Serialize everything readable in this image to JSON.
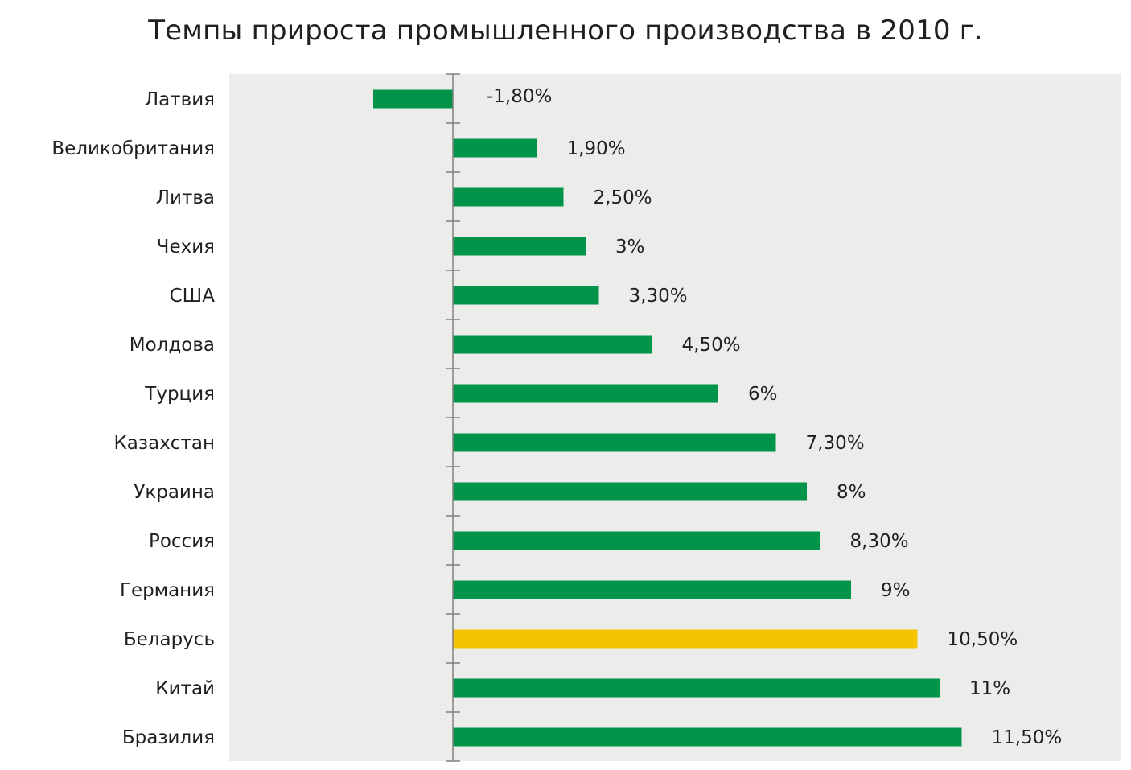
{
  "chart_data": {
    "type": "bar",
    "orientation": "horizontal",
    "title": "Темпы прироста промышленного производства в 2010 г.",
    "categories": [
      "Латвия",
      "Великобритания",
      "Литва",
      "Чехия",
      "США",
      "Молдова",
      "Турция",
      "Казахстан",
      "Украина",
      "Россия",
      "Германия",
      "Беларусь",
      "Китай",
      "Бразилия"
    ],
    "values": [
      -1.8,
      1.9,
      2.5,
      3,
      3.3,
      4.5,
      6,
      7.3,
      8,
      8.3,
      9,
      10.5,
      11,
      11.5
    ],
    "value_labels": [
      "-1,80%",
      "1,90%",
      "2,50%",
      "3%",
      "3,30%",
      "4,50%",
      "6%",
      "7,30%",
      "8%",
      "8,30%",
      "9%",
      "10,50%",
      "11%",
      "11,50%"
    ],
    "xlabel": "",
    "ylabel": "",
    "xlim": [
      -5.1,
      15
    ],
    "grid": false,
    "legend": "none",
    "colors": {
      "bar": "#00944a",
      "highlight": "#f5c400",
      "plot_background": "#ececea",
      "axis": "#808080"
    },
    "highlight_category": "Беларусь"
  }
}
